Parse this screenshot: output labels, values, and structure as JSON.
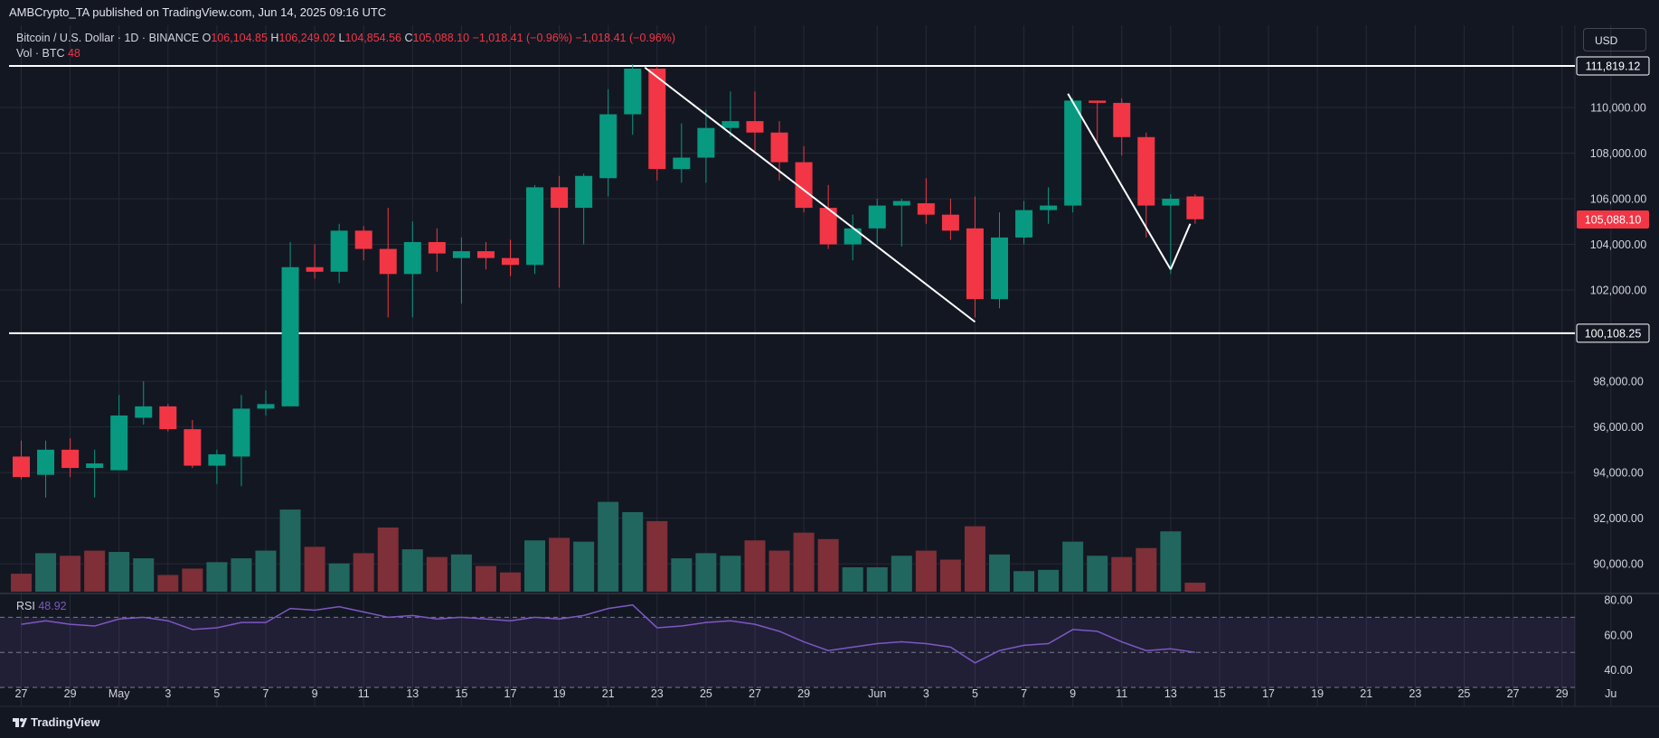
{
  "header": {
    "published": "AMBCrypto_TA published on TradingView.com, Jun 14, 2025 09:16 UTC"
  },
  "legend": {
    "symbol": "Bitcoin / U.S. Dollar · 1D · BINANCE",
    "o_label": "O",
    "o_value": "106,104.85",
    "h_label": "H",
    "h_value": "106,249.02",
    "l_label": "L",
    "l_value": "104,854.56",
    "c_label": "C",
    "c_value": "105,088.10",
    "change": "−1,018.41 (−0.96%)",
    "change2": "−1,018.41 (−0.96%)",
    "vol_label": "Vol · BTC",
    "vol_value": "48"
  },
  "currency_button": "USD",
  "rsi_legend": {
    "label": "RSI",
    "value": "48.92"
  },
  "footer": {
    "brand": "TradingView"
  },
  "colors": {
    "up": "#089981",
    "down": "#f23645",
    "rsi": "#7e57c2",
    "bg": "#131722",
    "grid": "#252a36"
  },
  "chart_data": {
    "type": "candlestick",
    "price_axis_ticks": [
      "110,000.00",
      "108,000.00",
      "106,000.00",
      "104,000.00",
      "102,000.00",
      "98,000.00",
      "96,000.00",
      "94,000.00",
      "92,000.00",
      "90,000.00"
    ],
    "price_axis_tick_values": [
      110000,
      108000,
      106000,
      104000,
      102000,
      98000,
      96000,
      94000,
      92000,
      90000
    ],
    "price_range": [
      88700,
      113600
    ],
    "horizontal_levels": [
      {
        "value": 111819.12,
        "label": "111,819.12"
      },
      {
        "value": 100108.25,
        "label": "100,108.25"
      }
    ],
    "last_price": {
      "value": 105088.1,
      "label": "105,088.10"
    },
    "x_axis_labels": [
      {
        "i": 0,
        "label": "27"
      },
      {
        "i": 2,
        "label": "29"
      },
      {
        "i": 4,
        "label": "May"
      },
      {
        "i": 6,
        "label": "3"
      },
      {
        "i": 8,
        "label": "5"
      },
      {
        "i": 10,
        "label": "7"
      },
      {
        "i": 12,
        "label": "9"
      },
      {
        "i": 14,
        "label": "11"
      },
      {
        "i": 16,
        "label": "13"
      },
      {
        "i": 18,
        "label": "15"
      },
      {
        "i": 20,
        "label": "17"
      },
      {
        "i": 22,
        "label": "19"
      },
      {
        "i": 24,
        "label": "21"
      },
      {
        "i": 26,
        "label": "23"
      },
      {
        "i": 28,
        "label": "25"
      },
      {
        "i": 30,
        "label": "27"
      },
      {
        "i": 32,
        "label": "29"
      },
      {
        "i": 35,
        "label": "Jun"
      },
      {
        "i": 37,
        "label": "3"
      },
      {
        "i": 39,
        "label": "5"
      },
      {
        "i": 41,
        "label": "7"
      },
      {
        "i": 43,
        "label": "9"
      },
      {
        "i": 45,
        "label": "11"
      },
      {
        "i": 47,
        "label": "13"
      },
      {
        "i": 49,
        "label": "15"
      },
      {
        "i": 51,
        "label": "17"
      },
      {
        "i": 53,
        "label": "19"
      },
      {
        "i": 55,
        "label": "21"
      },
      {
        "i": 57,
        "label": "23"
      },
      {
        "i": 59,
        "label": "25"
      },
      {
        "i": 61,
        "label": "27"
      },
      {
        "i": 63,
        "label": "29"
      },
      {
        "i": 65,
        "label": "Ju"
      }
    ],
    "candles": [
      {
        "o": 94700,
        "h": 95400,
        "l": 93700,
        "c": 93800
      },
      {
        "o": 93900,
        "h": 95400,
        "l": 92900,
        "c": 95000
      },
      {
        "o": 95000,
        "h": 95500,
        "l": 93800,
        "c": 94200
      },
      {
        "o": 94200,
        "h": 95000,
        "l": 92900,
        "c": 94400
      },
      {
        "o": 94100,
        "h": 97400,
        "l": 94100,
        "c": 96500
      },
      {
        "o": 96400,
        "h": 98000,
        "l": 96100,
        "c": 96900
      },
      {
        "o": 96900,
        "h": 97000,
        "l": 95800,
        "c": 95900
      },
      {
        "o": 95900,
        "h": 96300,
        "l": 94200,
        "c": 94300
      },
      {
        "o": 94300,
        "h": 95000,
        "l": 93500,
        "c": 94800
      },
      {
        "o": 94700,
        "h": 97400,
        "l": 93400,
        "c": 96800
      },
      {
        "o": 96800,
        "h": 97600,
        "l": 96500,
        "c": 97000
      },
      {
        "o": 96900,
        "h": 104100,
        "l": 96900,
        "c": 103000
      },
      {
        "o": 103000,
        "h": 104000,
        "l": 102500,
        "c": 102800
      },
      {
        "o": 102800,
        "h": 104900,
        "l": 102300,
        "c": 104600
      },
      {
        "o": 104600,
        "h": 104800,
        "l": 103300,
        "c": 103800
      },
      {
        "o": 103800,
        "h": 105600,
        "l": 100800,
        "c": 102700
      },
      {
        "o": 102700,
        "h": 105000,
        "l": 100800,
        "c": 104100
      },
      {
        "o": 104100,
        "h": 104700,
        "l": 102800,
        "c": 103600
      },
      {
        "o": 103400,
        "h": 104300,
        "l": 101400,
        "c": 103700
      },
      {
        "o": 103700,
        "h": 104100,
        "l": 102900,
        "c": 103400
      },
      {
        "o": 103400,
        "h": 104200,
        "l": 102600,
        "c": 103100
      },
      {
        "o": 103100,
        "h": 106600,
        "l": 102700,
        "c": 106500
      },
      {
        "o": 106500,
        "h": 107000,
        "l": 102100,
        "c": 105600
      },
      {
        "o": 105600,
        "h": 107100,
        "l": 104000,
        "c": 107000
      },
      {
        "o": 106900,
        "h": 110800,
        "l": 106100,
        "c": 109700
      },
      {
        "o": 109700,
        "h": 111900,
        "l": 108800,
        "c": 111700
      },
      {
        "o": 111700,
        "h": 111800,
        "l": 106800,
        "c": 107300
      },
      {
        "o": 107300,
        "h": 109300,
        "l": 106700,
        "c": 107800
      },
      {
        "o": 107800,
        "h": 109900,
        "l": 106700,
        "c": 109100
      },
      {
        "o": 109100,
        "h": 110700,
        "l": 108700,
        "c": 109400
      },
      {
        "o": 109400,
        "h": 110700,
        "l": 108100,
        "c": 108900
      },
      {
        "o": 108900,
        "h": 109400,
        "l": 106800,
        "c": 107600
      },
      {
        "o": 107600,
        "h": 108300,
        "l": 105400,
        "c": 105600
      },
      {
        "o": 105600,
        "h": 106600,
        "l": 103800,
        "c": 104000
      },
      {
        "o": 104000,
        "h": 105300,
        "l": 103300,
        "c": 104700
      },
      {
        "o": 104700,
        "h": 106000,
        "l": 104000,
        "c": 105700
      },
      {
        "o": 105700,
        "h": 106000,
        "l": 103900,
        "c": 105900
      },
      {
        "o": 105800,
        "h": 106900,
        "l": 104900,
        "c": 105300
      },
      {
        "o": 105300,
        "h": 106000,
        "l": 104200,
        "c": 104600
      },
      {
        "o": 104700,
        "h": 106100,
        "l": 100800,
        "c": 101600
      },
      {
        "o": 101600,
        "h": 105400,
        "l": 101200,
        "c": 104300
      },
      {
        "o": 104300,
        "h": 105900,
        "l": 104000,
        "c": 105500
      },
      {
        "o": 105500,
        "h": 106500,
        "l": 104900,
        "c": 105700
      },
      {
        "o": 105700,
        "h": 110400,
        "l": 105400,
        "c": 110300
      },
      {
        "o": 110300,
        "h": 110300,
        "l": 108500,
        "c": 110200
      },
      {
        "o": 110200,
        "h": 110400,
        "l": 107900,
        "c": 108700
      },
      {
        "o": 108700,
        "h": 108900,
        "l": 104300,
        "c": 105700
      },
      {
        "o": 105700,
        "h": 106200,
        "l": 102700,
        "c": 106000
      },
      {
        "o": 106100,
        "h": 106200,
        "l": 104900,
        "c": 105100
      }
    ],
    "volume": [
      {
        "v": 9.4,
        "up": false
      },
      {
        "v": 11.0,
        "up": true
      },
      {
        "v": 10.8,
        "up": false
      },
      {
        "v": 11.2,
        "up": false
      },
      {
        "v": 11.1,
        "up": true
      },
      {
        "v": 10.6,
        "up": true
      },
      {
        "v": 9.3,
        "up": false
      },
      {
        "v": 9.8,
        "up": false
      },
      {
        "v": 10.3,
        "up": true
      },
      {
        "v": 10.6,
        "up": true
      },
      {
        "v": 11.2,
        "up": true
      },
      {
        "v": 14.4,
        "up": true
      },
      {
        "v": 11.5,
        "up": false
      },
      {
        "v": 10.2,
        "up": true
      },
      {
        "v": 11.0,
        "up": false
      },
      {
        "v": 13.0,
        "up": false
      },
      {
        "v": 11.3,
        "up": true
      },
      {
        "v": 10.7,
        "up": false
      },
      {
        "v": 10.9,
        "up": true
      },
      {
        "v": 10.0,
        "up": false
      },
      {
        "v": 9.5,
        "up": false
      },
      {
        "v": 12.0,
        "up": true
      },
      {
        "v": 12.2,
        "up": false
      },
      {
        "v": 11.9,
        "up": true
      },
      {
        "v": 15.0,
        "up": true
      },
      {
        "v": 14.2,
        "up": true
      },
      {
        "v": 13.5,
        "up": false
      },
      {
        "v": 10.6,
        "up": true
      },
      {
        "v": 11.0,
        "up": true
      },
      {
        "v": 10.8,
        "up": true
      },
      {
        "v": 12.0,
        "up": false
      },
      {
        "v": 11.2,
        "up": false
      },
      {
        "v": 12.6,
        "up": false
      },
      {
        "v": 12.1,
        "up": false
      },
      {
        "v": 9.9,
        "up": true
      },
      {
        "v": 9.9,
        "up": true
      },
      {
        "v": 10.8,
        "up": true
      },
      {
        "v": 11.2,
        "up": false
      },
      {
        "v": 10.5,
        "up": false
      },
      {
        "v": 13.1,
        "up": false
      },
      {
        "v": 10.9,
        "up": true
      },
      {
        "v": 9.6,
        "up": true
      },
      {
        "v": 9.7,
        "up": true
      },
      {
        "v": 11.9,
        "up": true
      },
      {
        "v": 10.8,
        "up": true
      },
      {
        "v": 10.7,
        "up": false
      },
      {
        "v": 11.4,
        "up": false
      },
      {
        "v": 12.7,
        "up": true
      },
      {
        "v": 8.7,
        "up": false
      }
    ],
    "rsi": {
      "ticks": [
        "80.00",
        "60.00",
        "40.00"
      ],
      "tick_values": [
        80,
        60,
        40
      ],
      "range": [
        29,
        82
      ],
      "bands": [
        70,
        50,
        30
      ],
      "values": [
        66,
        68,
        66,
        65,
        69,
        70,
        68,
        63,
        64,
        67,
        67,
        75,
        74,
        76,
        73,
        70,
        71,
        69,
        70,
        69,
        68,
        70,
        69,
        71,
        75,
        77,
        64,
        65,
        67,
        68,
        66,
        62,
        56,
        51,
        53,
        55,
        56,
        55,
        53,
        44,
        51,
        54,
        55,
        63,
        62,
        56,
        51,
        52,
        50
      ]
    },
    "trend_lines": [
      {
        "from": {
          "i": 25.5,
          "v": 111750
        },
        "to": {
          "i": 39,
          "v": 100600
        }
      },
      {
        "from": {
          "i": 42.8,
          "v": 110600
        },
        "to": {
          "i": 47,
          "v": 102900
        }
      },
      {
        "from": {
          "i": 47,
          "v": 102900
        },
        "to": {
          "i": 47.8,
          "v": 104900
        }
      }
    ]
  }
}
